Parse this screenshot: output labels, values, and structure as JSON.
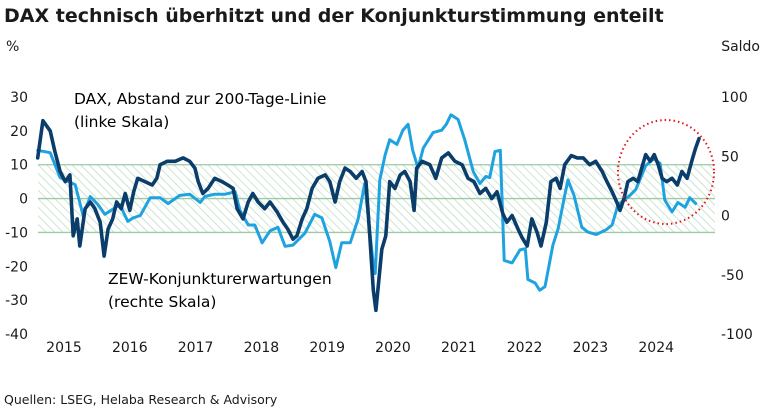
{
  "chart_data": {
    "type": "line",
    "title": "DAX technisch überhitzt und der Konjunkturstimmung enteilt",
    "ylabel_left": "%",
    "ylabel_right": "Saldo",
    "ylim_left": [
      -40,
      30
    ],
    "ylim_right": [
      -100,
      100
    ],
    "yticks_left": [
      "30",
      "20",
      "10",
      "0",
      "-10",
      "-20",
      "-30",
      "-40"
    ],
    "yticks_right": [
      "100",
      "50",
      "0",
      "-50",
      "-100"
    ],
    "xticks": [
      "2015",
      "2016",
      "2017",
      "2018",
      "2019",
      "2020",
      "2021",
      "2022",
      "2023",
      "2024"
    ],
    "band_left": [
      -10,
      10
    ],
    "grid": false,
    "source": "Quellen: LSEG, Helaba Research & Advisory",
    "colors": {
      "dax": "#0b3d6b",
      "zew": "#1fa3e0",
      "band": "#9ccaa4",
      "highlight": "#e8141c"
    },
    "series": [
      {
        "name": "DAX, Abstand zur 200-Tage-Linie",
        "name_line2": "(linke Skala)",
        "axis": "left",
        "x": [
          2015.1,
          2015.18,
          2015.29,
          2015.36,
          2015.44,
          2015.52,
          2015.59,
          2015.64,
          2015.7,
          2015.74,
          2015.82,
          2015.9,
          2015.97,
          2016.05,
          2016.11,
          2016.17,
          2016.24,
          2016.3,
          2016.37,
          2016.43,
          2016.5,
          2016.56,
          2016.62,
          2016.73,
          2016.84,
          2016.91,
          2016.96,
          2017.07,
          2017.19,
          2017.31,
          2017.41,
          2017.49,
          2017.54,
          2017.61,
          2017.69,
          2017.79,
          2017.9,
          2017.99,
          2018.07,
          2018.13,
          2018.22,
          2018.3,
          2018.37,
          2018.45,
          2018.55,
          2018.63,
          2018.74,
          2018.83,
          2018.9,
          2018.98,
          2019.04,
          2019.12,
          2019.19,
          2019.27,
          2019.36,
          2019.47,
          2019.54,
          2019.62,
          2019.69,
          2019.77,
          2019.85,
          2019.94,
          2020.03,
          2020.09,
          2020.15,
          2020.2,
          2020.24,
          2020.29,
          2020.33,
          2020.39,
          2020.45,
          2020.53,
          2020.61,
          2020.68,
          2020.76,
          2020.82,
          2020.86,
          2020.94,
          2021.06,
          2021.15,
          2021.24,
          2021.34,
          2021.44,
          2021.55,
          2021.64,
          2021.73,
          2021.82,
          2021.91,
          2022.0,
          2022.08,
          2022.17,
          2022.23,
          2022.31,
          2022.4,
          2022.46,
          2022.54,
          2022.61,
          2022.69,
          2022.75,
          2022.83,
          2022.9,
          2022.98,
          2023.04,
          2023.11,
          2023.21,
          2023.3,
          2023.39,
          2023.49,
          2023.58,
          2023.68,
          2023.75,
          2023.83,
          2023.9,
          2023.95,
          2024.01,
          2024.07,
          2024.15,
          2024.22,
          2024.28,
          2024.34,
          2024.41,
          2024.47,
          2024.53,
          2024.59,
          2024.66,
          2024.74,
          2024.82,
          2024.89,
          2024.97,
          2025.04,
          2025.1,
          2025.15
        ],
        "values": [
          12,
          23,
          20,
          14,
          8,
          5,
          7,
          -11,
          -6,
          -14,
          -3,
          -1,
          -3,
          -7,
          -17,
          -9,
          -6,
          -1,
          -3,
          1.5,
          -3.5,
          2,
          6,
          5,
          4,
          6,
          10,
          11,
          11,
          12,
          11,
          9,
          5,
          1.5,
          3,
          6,
          5,
          4,
          3,
          -3,
          -6,
          -1,
          1.5,
          -1,
          -3,
          -1,
          -4,
          -7,
          -9,
          -12,
          -11,
          -6,
          -3,
          3,
          6,
          7,
          5,
          -1,
          5,
          9,
          8,
          6,
          8,
          5,
          -12,
          -27,
          -33,
          -23,
          -15,
          -11,
          5,
          3,
          7,
          8,
          5,
          -3.5,
          9,
          11,
          10,
          6,
          12,
          13.5,
          11,
          10,
          6,
          5,
          1.5,
          3,
          0,
          2,
          -4.5,
          -7,
          -5,
          -9,
          -11.5,
          -14,
          -6,
          -10,
          -14,
          -7,
          5,
          6,
          3,
          10,
          12.7,
          12,
          12,
          10,
          11,
          8,
          5,
          2,
          -1,
          -3.5,
          0,
          5,
          6,
          5,
          9,
          13,
          11,
          13,
          10,
          6,
          5,
          6,
          4,
          8,
          6,
          11,
          15,
          17.7
        ]
      },
      {
        "name": "ZEW-Konjunkturerwartungen",
        "name_line2": "(rechte Skala)",
        "axis": "right",
        "x": [
          2015.1,
          2015.29,
          2015.44,
          2015.67,
          2015.79,
          2015.9,
          2016.02,
          2016.12,
          2016.35,
          2016.47,
          2016.55,
          2016.66,
          2016.81,
          2016.96,
          2017.08,
          2017.26,
          2017.41,
          2017.57,
          2017.64,
          2017.79,
          2017.95,
          2018.1,
          2018.17,
          2018.3,
          2018.4,
          2018.51,
          2018.63,
          2018.75,
          2018.86,
          2018.98,
          2019.16,
          2019.31,
          2019.42,
          2019.54,
          2019.63,
          2019.72,
          2019.85,
          2019.97,
          2020.07,
          2020.21,
          2020.23,
          2020.3,
          2020.38,
          2020.45,
          2020.56,
          2020.65,
          2020.73,
          2020.8,
          2020.88,
          2020.96,
          2021.11,
          2021.24,
          2021.31,
          2021.38,
          2021.49,
          2021.59,
          2021.72,
          2021.82,
          2021.91,
          2021.97,
          2022.05,
          2022.13,
          2022.19,
          2022.31,
          2022.43,
          2022.51,
          2022.55,
          2022.66,
          2022.73,
          2022.81,
          2022.93,
          2023.01,
          2023.11,
          2023.16,
          2023.25,
          2023.37,
          2023.46,
          2023.59,
          2023.74,
          2023.83,
          2023.92,
          2024.1,
          2024.19,
          2024.34,
          2024.46,
          2024.56,
          2024.63,
          2024.74,
          2024.83,
          2024.94,
          2025.01,
          2025.1
        ],
        "values": [
          55,
          53,
          32,
          26,
          0,
          16,
          9,
          1,
          9,
          -5,
          -2,
          0,
          15,
          15,
          10,
          17,
          18,
          11,
          16,
          18,
          18,
          20,
          5,
          -8,
          -8,
          -23,
          -13,
          -10,
          -26,
          -25,
          -15,
          1,
          -2,
          -22,
          -44,
          -23,
          -23,
          -3,
          27,
          -46,
          -49,
          30,
          51,
          64,
          60,
          72,
          77,
          55,
          40,
          57,
          70,
          72,
          77,
          85,
          81,
          64,
          37,
          27,
          33,
          32,
          54,
          55,
          -38,
          -40,
          -29,
          -28,
          -54,
          -57,
          -63,
          -60,
          -25,
          -11,
          17,
          30,
          17,
          -10,
          -14,
          -16,
          -12,
          -8,
          9,
          17,
          22,
          42,
          48,
          44,
          13,
          3,
          11,
          7,
          15,
          10
        ]
      }
    ]
  }
}
